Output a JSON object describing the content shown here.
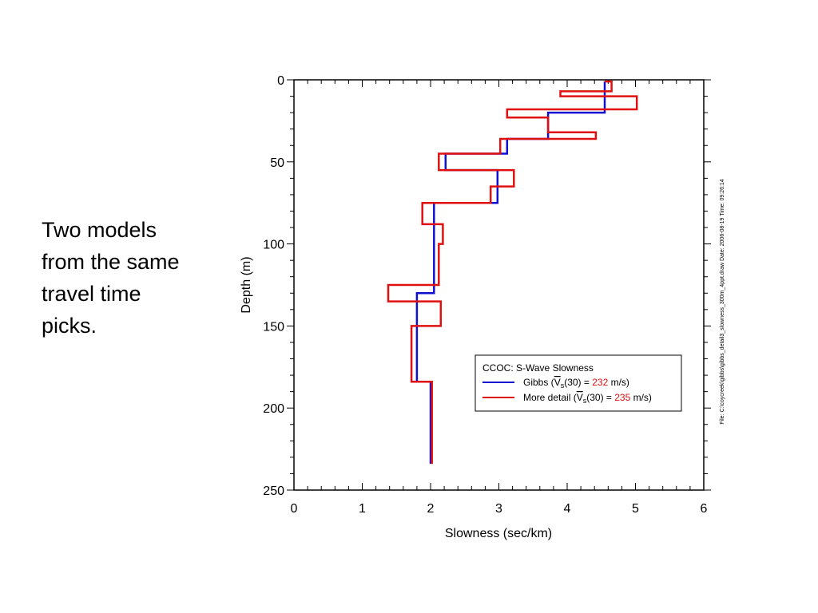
{
  "slide": {
    "caption_lines": [
      "Two models",
      "from the same",
      "travel time",
      "picks."
    ]
  },
  "chart_data": {
    "type": "line",
    "xlabel": "Slowness  (sec/km)",
    "ylabel": "Depth (m)",
    "xlim": [
      0,
      6
    ],
    "ylim": [
      0,
      250
    ],
    "y_inverted": true,
    "x_ticks": [
      0,
      1,
      2,
      3,
      4,
      5,
      6
    ],
    "y_ticks": [
      0,
      50,
      100,
      150,
      200,
      250
    ],
    "grid": false,
    "legend_position": "lower-right",
    "legend_title": "CCOC:  S-Wave   Slowness",
    "series": [
      {
        "legend_prefix": "Gibbs  (",
        "legend_vs": "V",
        "legend_sub": "s",
        "legend_mid": "(30)  = ",
        "legend_value": "232",
        "legend_suffix": "  m/s)",
        "color": "#1010d0",
        "x": [
          4.55,
          4.55,
          3.72,
          3.72,
          3.12,
          3.12,
          2.22,
          2.22,
          2.98,
          2.98,
          2.05,
          2.05,
          1.8,
          1.8,
          2.0,
          2.0
        ],
        "y": [
          1,
          20,
          20,
          36,
          36,
          45,
          45,
          55,
          55,
          75,
          75,
          130,
          130,
          184,
          184,
          234
        ]
      },
      {
        "legend_prefix": "More  detail  (",
        "legend_vs": "V",
        "legend_sub": "s",
        "legend_mid": "(30)  = ",
        "legend_value": "235",
        "legend_suffix": "  m/s)",
        "color": "#e01010",
        "x": [
          4.55,
          4.65,
          4.65,
          3.9,
          3.9,
          5.02,
          5.02,
          3.12,
          3.12,
          3.72,
          3.72,
          3.72,
          3.72,
          4.42,
          4.42,
          3.02,
          3.02,
          2.12,
          2.12,
          3.22,
          3.22,
          2.88,
          2.88,
          1.88,
          1.88,
          2.18,
          2.18,
          2.12,
          2.12,
          1.38,
          1.38,
          2.15,
          2.15,
          1.72,
          1.72,
          2.02,
          2.02
        ],
        "y": [
          1,
          1,
          7,
          7,
          10,
          10,
          18,
          18,
          23,
          23,
          24,
          32,
          32,
          32,
          36,
          36,
          45,
          45,
          55,
          55,
          65,
          65,
          75,
          75,
          88,
          88,
          100,
          100,
          125,
          125,
          135,
          135,
          150,
          150,
          184,
          184,
          234
        ]
      }
    ],
    "side_note": "File: C:\\coycreek\\gibbs\\gibbs_detail3_slowness_300m_4ppt.draw   Date: 2006-08-19   Time: 09:26:14"
  }
}
